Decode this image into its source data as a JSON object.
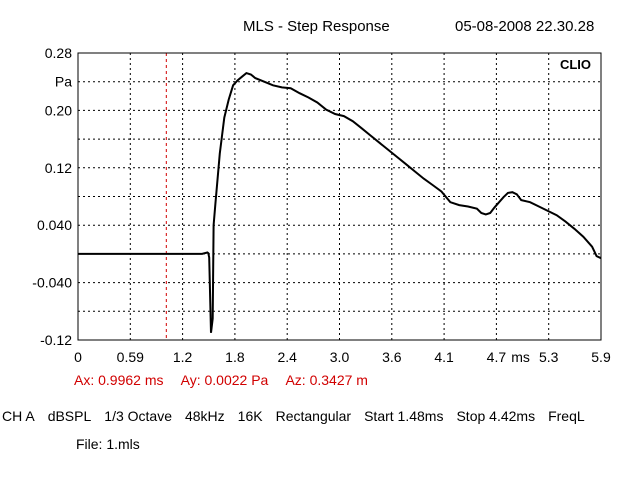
{
  "header": {
    "title": "MLS - Step Response",
    "timestamp": "05-08-2008 22.30.28"
  },
  "plot": {
    "badge": "CLIO",
    "unit_label": "Pa",
    "x_unit_label": "ms"
  },
  "cursor": {
    "ax": "Ax: 0.9962 ms",
    "ay": "Ay: 0.0022 Pa",
    "az": "Az: 0.3427 m",
    "x_value": 0.9962
  },
  "status": {
    "items": [
      "CH A",
      "dBSPL",
      "1/3 Octave",
      "48kHz",
      "16K",
      "Rectangular",
      "Start 1.48ms",
      "Stop 4.42ms",
      "FreqL"
    ]
  },
  "file": "File: 1.mls",
  "colors": {
    "curve": "#000000",
    "grid": "#000000",
    "cursor": "#d10000"
  },
  "chart_data": {
    "type": "line",
    "title": "MLS - Step Response",
    "xlabel": "ms",
    "ylabel": "Pa",
    "xlim": [
      0,
      5.9
    ],
    "ylim": [
      -0.12,
      0.28
    ],
    "x_ticks": [
      "0",
      "0.59",
      "1.2",
      "1.8",
      "2.4",
      "3.0",
      "3.6",
      "4.1",
      "4.7",
      "5.3",
      "5.9"
    ],
    "y_ticks": [
      "0.28",
      "0.20",
      "0.12",
      "0.040",
      "-0.040",
      "-0.12"
    ],
    "grid": true,
    "series": [
      {
        "x": [
          0,
          0.2,
          0.6,
          1.0,
          1.4,
          1.46,
          1.47,
          1.48,
          1.5,
          1.52,
          1.53,
          1.55,
          1.6,
          1.65,
          1.7,
          1.75,
          1.8,
          1.85,
          1.9,
          1.95,
          2.0,
          2.1,
          2.2,
          2.3,
          2.4,
          2.5,
          2.6,
          2.7,
          2.8,
          2.9,
          3.0,
          3.1,
          3.2,
          3.3,
          3.4,
          3.5,
          3.6,
          3.7,
          3.8,
          3.9,
          4.0,
          4.1,
          4.2,
          4.3,
          4.4,
          4.5,
          4.55,
          4.6,
          4.65,
          4.7,
          4.75,
          4.8,
          4.85,
          4.9,
          4.95,
          5.0,
          5.1,
          5.2,
          5.3,
          5.4,
          5.5,
          5.6,
          5.7,
          5.8,
          5.85,
          5.9
        ],
        "y": [
          0.0,
          0.0,
          0.0,
          0.0,
          0.0,
          0.002,
          0.001,
          -0.005,
          -0.11,
          -0.09,
          0.04,
          0.07,
          0.14,
          0.19,
          0.215,
          0.235,
          0.242,
          0.247,
          0.252,
          0.25,
          0.245,
          0.24,
          0.235,
          0.232,
          0.231,
          0.224,
          0.218,
          0.211,
          0.201,
          0.195,
          0.192,
          0.185,
          0.175,
          0.165,
          0.155,
          0.145,
          0.135,
          0.125,
          0.115,
          0.105,
          0.096,
          0.087,
          0.072,
          0.068,
          0.066,
          0.063,
          0.057,
          0.055,
          0.057,
          0.065,
          0.072,
          0.079,
          0.085,
          0.086,
          0.083,
          0.075,
          0.072,
          0.066,
          0.06,
          0.054,
          0.045,
          0.035,
          0.024,
          0.01,
          -0.003,
          -0.006
        ]
      }
    ]
  }
}
